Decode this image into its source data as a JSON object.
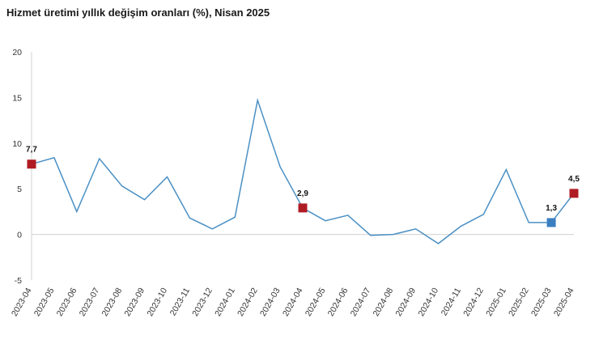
{
  "chart_data": {
    "type": "line",
    "title": "Hizmet üretimi yıllık değişim oranları (%), Nisan 2025",
    "xlabel": "",
    "ylabel": "",
    "ylim": [
      -5,
      20
    ],
    "yticks": [
      -5,
      0,
      5,
      10,
      15,
      20
    ],
    "grid": false,
    "categories": [
      "2023-04",
      "2023-05",
      "2023-06",
      "2023-07",
      "2023-08",
      "2023-09",
      "2023-10",
      "2023-11",
      "2023-12",
      "2024-01",
      "2024-02",
      "2024-03",
      "2024-04",
      "2024-05",
      "2024-06",
      "2024-07",
      "2024-08",
      "2024-09",
      "2024-10",
      "2024-11",
      "2024-12",
      "2025-01",
      "2025-02",
      "2025-03",
      "2025-04"
    ],
    "series": [
      {
        "values": [
          7.7,
          8.4,
          2.5,
          8.3,
          5.3,
          3.8,
          6.3,
          1.8,
          0.6,
          1.9,
          14.7,
          7.4,
          2.9,
          1.5,
          2.1,
          -0.1,
          0.0,
          0.6,
          -1.0,
          0.9,
          2.2,
          7.1,
          1.3,
          1.3,
          4.5
        ],
        "color": "#4a90c4"
      }
    ],
    "highlights": [
      {
        "category": "2023-04",
        "value": 7.7,
        "label": "7,7",
        "color": "#b01c24"
      },
      {
        "category": "2024-04",
        "value": 2.9,
        "label": "2,9",
        "color": "#b01c24"
      },
      {
        "category": "2025-03",
        "value": 1.3,
        "label": "1,3",
        "color": "#3a7fc1"
      },
      {
        "category": "2025-04",
        "value": 4.5,
        "label": "4,5",
        "color": "#b01c24"
      }
    ]
  }
}
